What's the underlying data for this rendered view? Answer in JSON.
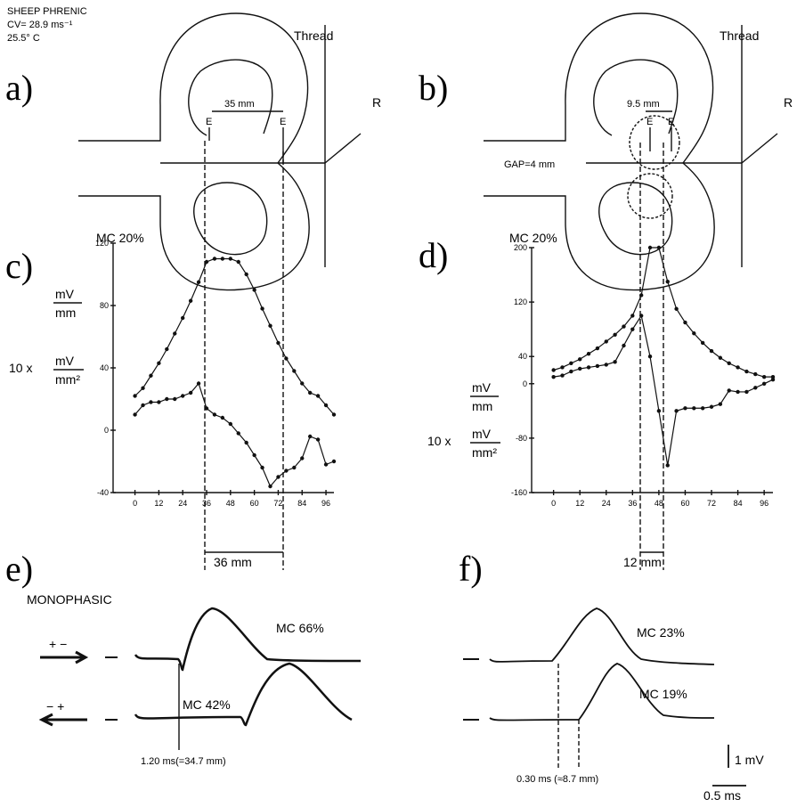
{
  "header": {
    "lines": [
      "SHEEP PHRENIC",
      "CV= 28.9 ms⁻¹",
      "25.5° C"
    ]
  },
  "panel_a": {
    "label": "a)",
    "thread": "Thread",
    "distance": "35 mm",
    "electrodes": [
      "E",
      "E"
    ],
    "reference": "R"
  },
  "panel_b": {
    "label": "b)",
    "thread": "Thread",
    "distance": "9.5 mm",
    "electrodes": [
      "E",
      "E"
    ],
    "reference": "R",
    "gap": "GAP=4 mm"
  },
  "chart_data": [
    {
      "type": "line",
      "panel_label": "c)",
      "annotation": "MC 20%",
      "y_label": {
        "numerator": "mV",
        "denominator": "mm"
      },
      "derivative_label": {
        "prefix": "10 x",
        "numerator": "mV",
        "denominator": "mm²"
      },
      "span_label": "36 mm",
      "x": [
        0,
        4,
        8,
        12,
        16,
        20,
        24,
        28,
        32,
        36,
        40,
        44,
        48,
        52,
        56,
        60,
        64,
        68,
        72,
        76,
        80,
        84,
        88,
        92,
        96,
        100
      ],
      "xlim": [
        -11,
        100
      ],
      "xticks": [
        0,
        12,
        24,
        36,
        48,
        60,
        72,
        84,
        96
      ],
      "ylim": [
        -40,
        120
      ],
      "yticks": [
        120,
        80,
        40,
        0,
        -40
      ],
      "series": [
        {
          "color": "#111111",
          "values": [
            22,
            27,
            35,
            43,
            52,
            62,
            72,
            83,
            95,
            108,
            110,
            110,
            110,
            108,
            100,
            90,
            78,
            67,
            56,
            46,
            38,
            30,
            24,
            22,
            16,
            10
          ]
        },
        {
          "color": "#111111",
          "values": [
            10,
            16,
            18,
            18,
            20,
            20,
            22,
            24,
            30,
            14,
            10,
            8,
            4,
            -2,
            -8,
            -16,
            -24,
            -36,
            -30,
            -26,
            -24,
            -18,
            -4,
            -6,
            -22,
            -20
          ]
        }
      ]
    },
    {
      "type": "line",
      "panel_label": "d)",
      "annotation": "MC 20%",
      "y_label": {
        "numerator": "mV",
        "denominator": "mm"
      },
      "derivative_label": {
        "prefix": "10 x",
        "numerator": "mV",
        "denominator": "mm²"
      },
      "span_label": "12 mm",
      "x": [
        0,
        4,
        8,
        12,
        16,
        20,
        24,
        28,
        32,
        36,
        40,
        44,
        48,
        52,
        56,
        60,
        64,
        68,
        72,
        76,
        80,
        84,
        88,
        92,
        96,
        100
      ],
      "xlim": [
        -10,
        100
      ],
      "xticks": [
        0,
        12,
        24,
        36,
        48,
        60,
        72,
        84,
        96
      ],
      "ylim": [
        -160,
        200
      ],
      "yticks": [
        200,
        120,
        40,
        0,
        -80,
        -160
      ],
      "series": [
        {
          "color": "#111111",
          "values": [
            20,
            24,
            30,
            36,
            44,
            52,
            62,
            72,
            84,
            100,
            130,
            200,
            200,
            150,
            110,
            90,
            74,
            60,
            48,
            38,
            30,
            24,
            18,
            14,
            10,
            10
          ]
        },
        {
          "color": "#111111",
          "values": [
            10,
            12,
            18,
            22,
            24,
            26,
            28,
            32,
            56,
            80,
            100,
            40,
            -40,
            -120,
            -40,
            -36,
            -36,
            -36,
            -34,
            -30,
            -10,
            -12,
            -12,
            -6,
            0,
            6
          ]
        }
      ]
    }
  ],
  "panel_e": {
    "label": "e)",
    "mode": "MONOPHASIC",
    "traces": [
      {
        "polarity": "+ −",
        "label": "MC 66%"
      },
      {
        "polarity": "− +",
        "label": "MC 42%"
      }
    ],
    "delay": "1.20 ms(=34.7 mm)"
  },
  "panel_f": {
    "label": "f)",
    "traces": [
      {
        "label": "MC 23%"
      },
      {
        "label": "MC 19%"
      }
    ],
    "delay": "0.30 ms (≈8.7 mm)",
    "scale": {
      "amplitude": "1 mV",
      "time": "0.5 ms"
    }
  }
}
